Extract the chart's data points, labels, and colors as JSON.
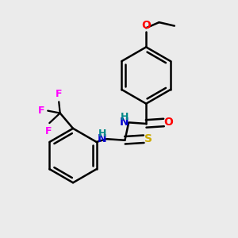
{
  "bg_color": "#ebebeb",
  "bond_color": "#000000",
  "bond_width": 1.8,
  "atom_colors": {
    "O": "#ff0000",
    "N": "#0000cc",
    "S": "#ccaa00",
    "F": "#ff00ff",
    "H": "#008888",
    "C": "#000000"
  },
  "font_size": 9,
  "figsize": [
    3.0,
    3.0
  ],
  "dpi": 100
}
